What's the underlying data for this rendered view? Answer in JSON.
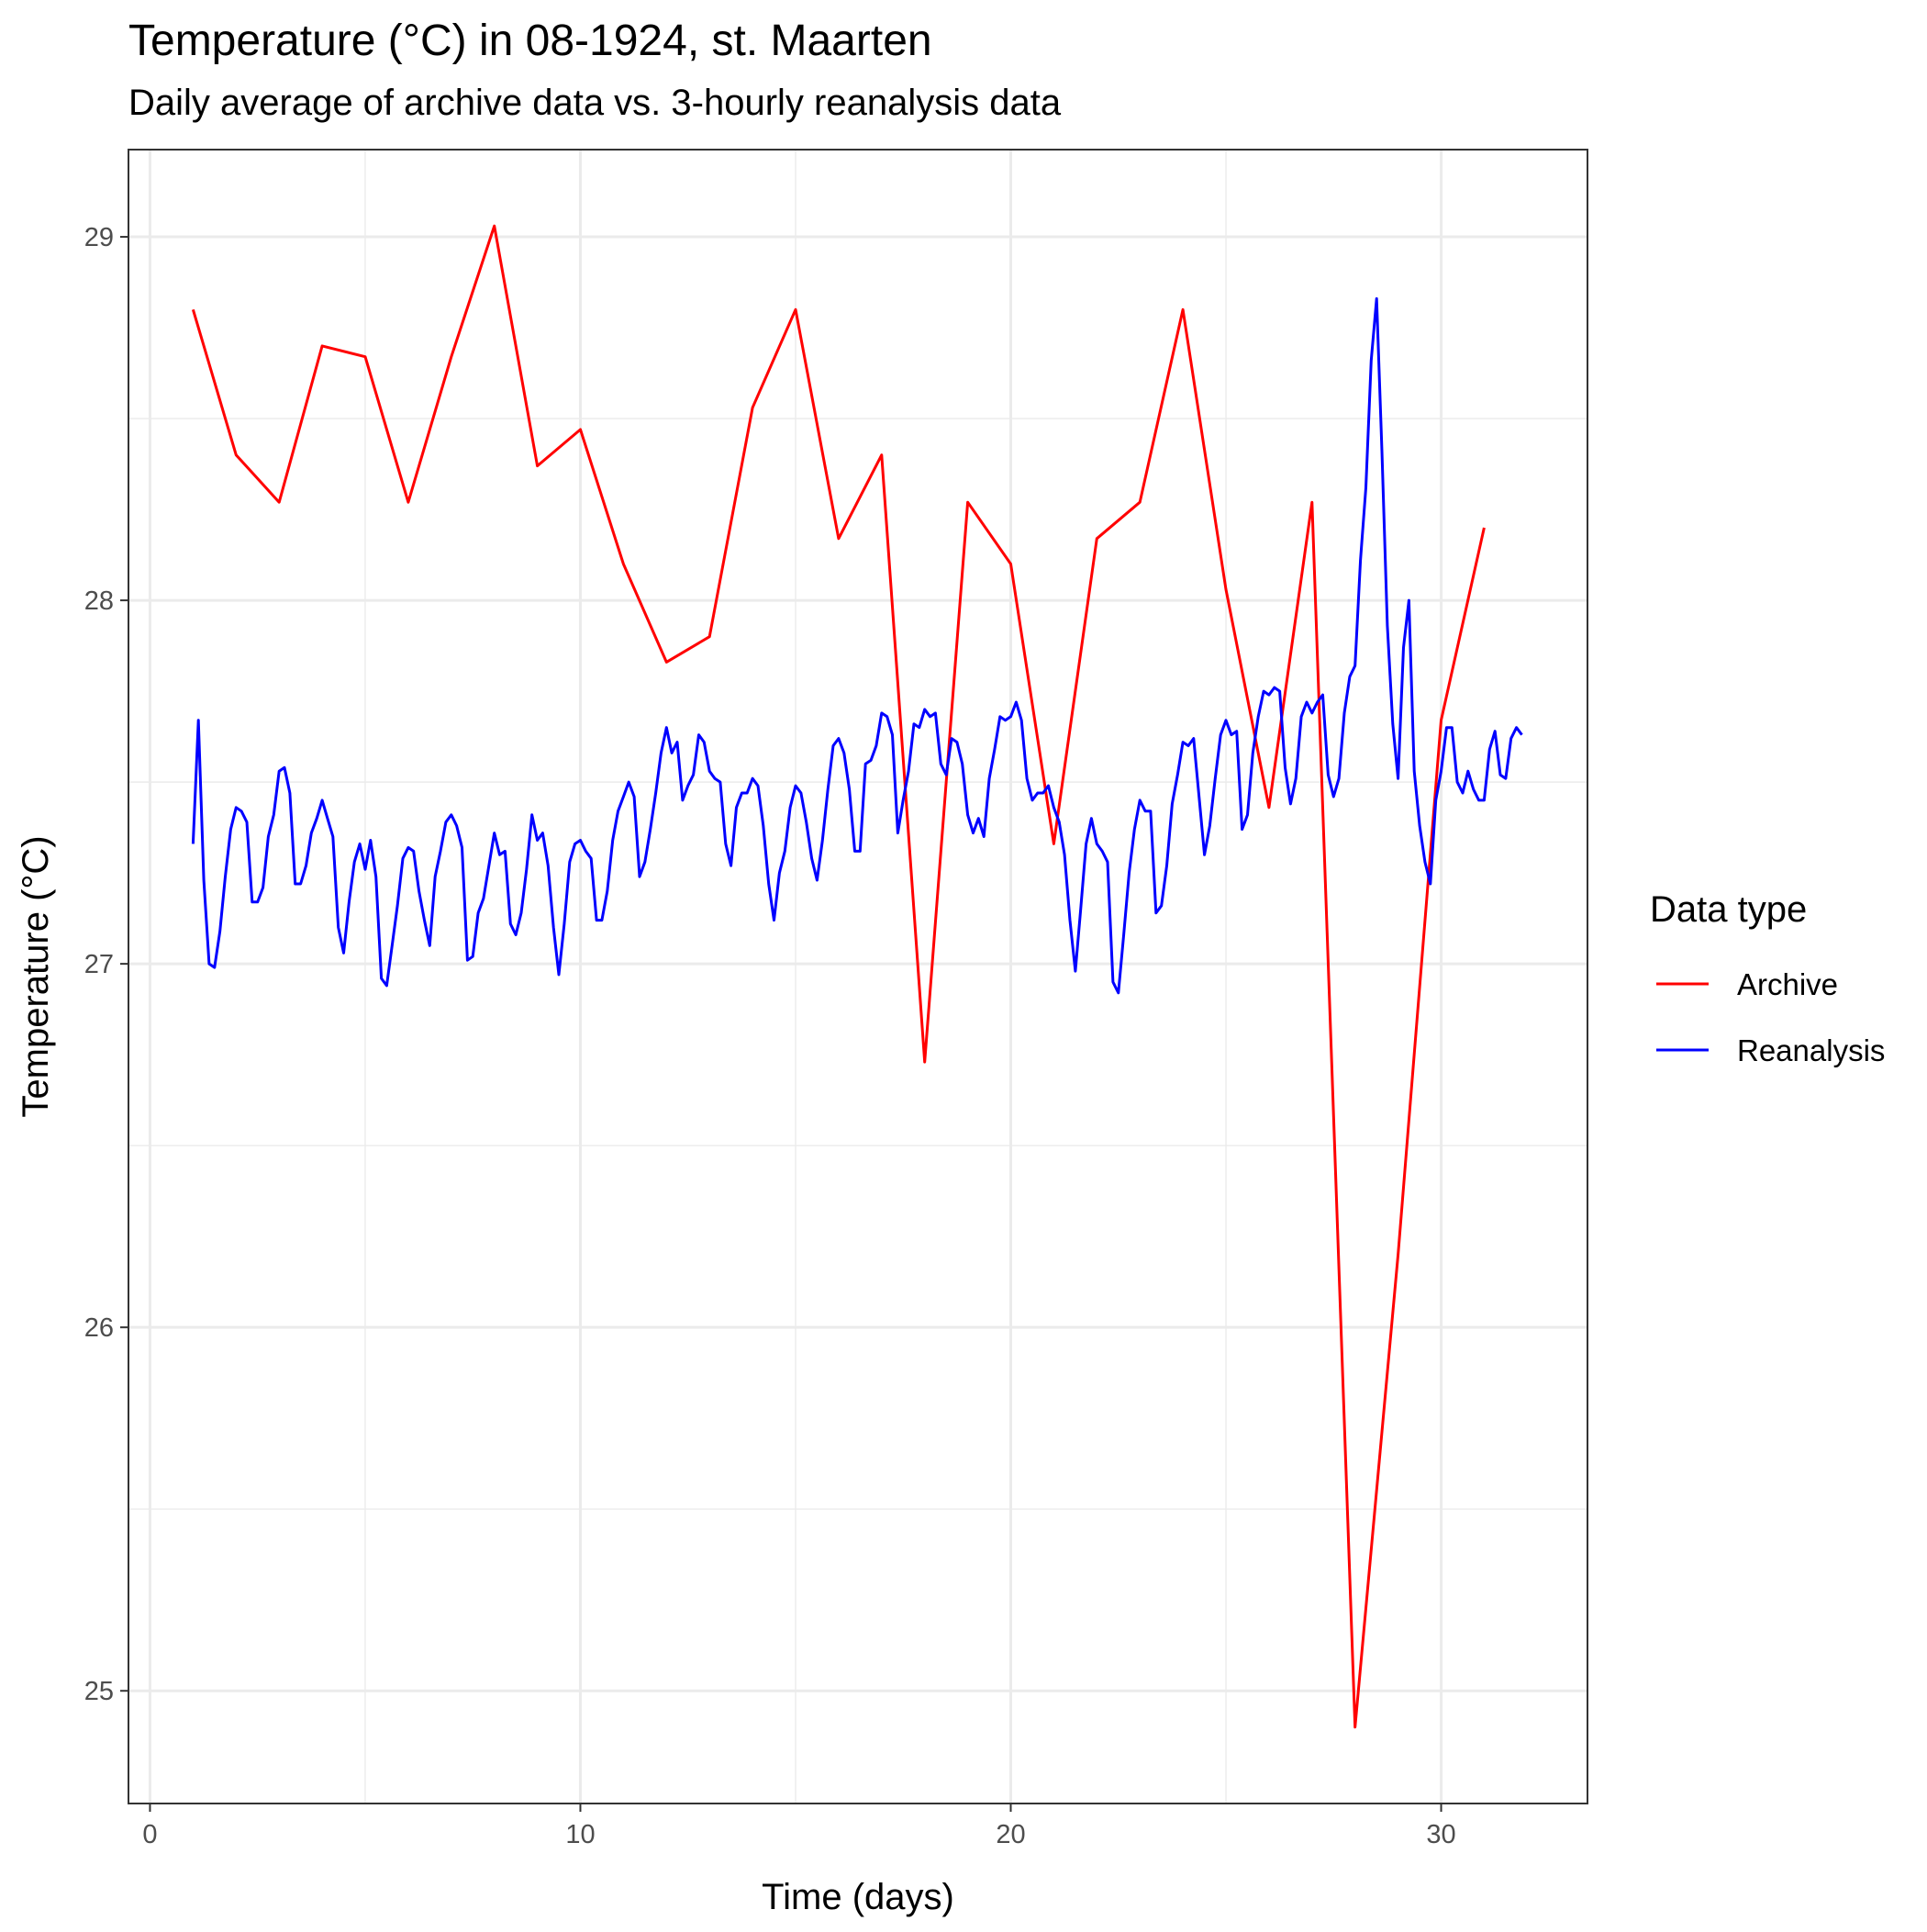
{
  "chart_data": {
    "type": "line",
    "title": "Temperature (°C) in 08-1924, st. Maarten",
    "subtitle": "Daily average of archive data vs. 3-hourly reanalysis data",
    "xlabel": "Time (days)",
    "ylabel": "Temperature (°C)",
    "xlim": [
      -0.5,
      33.4
    ],
    "ylim": [
      24.69,
      29.24
    ],
    "x_ticks": [
      0,
      10,
      20,
      30
    ],
    "y_ticks": [
      25,
      26,
      27,
      28,
      29
    ],
    "grid": true,
    "legend": {
      "title": "Data type",
      "position": "right"
    },
    "series": [
      {
        "name": "Archive",
        "color": "#ff0000",
        "x": [
          1,
          2,
          3,
          4,
          5,
          6,
          7,
          8,
          9,
          10,
          11,
          12,
          13,
          14,
          15,
          16,
          17,
          18,
          19,
          20,
          21,
          22,
          23,
          24,
          25,
          26,
          27,
          28,
          29,
          30,
          31
        ],
        "values": [
          28.8,
          28.4,
          28.27,
          28.7,
          28.67,
          28.27,
          28.67,
          29.03,
          28.37,
          28.47,
          28.1,
          27.83,
          27.9,
          28.53,
          28.8,
          28.17,
          28.4,
          26.73,
          28.27,
          28.1,
          27.33,
          28.17,
          28.27,
          28.8,
          28.03,
          27.43,
          28.27,
          24.9,
          26.2,
          27.67,
          28.2
        ]
      },
      {
        "name": "Reanalysis",
        "color": "#0000ff",
        "x": [
          1.0,
          1.125,
          1.25,
          1.375,
          1.5,
          1.625,
          1.75,
          1.875,
          2.0,
          2.125,
          2.25,
          2.375,
          2.5,
          2.625,
          2.75,
          2.875,
          3.0,
          3.125,
          3.25,
          3.375,
          3.5,
          3.625,
          3.75,
          3.875,
          4.0,
          4.125,
          4.25,
          4.375,
          4.5,
          4.625,
          4.75,
          4.875,
          5.0,
          5.125,
          5.25,
          5.375,
          5.5,
          5.625,
          5.75,
          5.875,
          6.0,
          6.125,
          6.25,
          6.375,
          6.5,
          6.625,
          6.75,
          6.875,
          7.0,
          7.125,
          7.25,
          7.375,
          7.5,
          7.625,
          7.75,
          7.875,
          8.0,
          8.125,
          8.25,
          8.375,
          8.5,
          8.625,
          8.75,
          8.875,
          9.0,
          9.125,
          9.25,
          9.375,
          9.5,
          9.625,
          9.75,
          9.875,
          10.0,
          10.125,
          10.25,
          10.375,
          10.5,
          10.625,
          10.75,
          10.875,
          11.0,
          11.125,
          11.25,
          11.375,
          11.5,
          11.625,
          11.75,
          11.875,
          12.0,
          12.125,
          12.25,
          12.375,
          12.5,
          12.625,
          12.75,
          12.875,
          13.0,
          13.125,
          13.25,
          13.375,
          13.5,
          13.625,
          13.75,
          13.875,
          14.0,
          14.125,
          14.25,
          14.375,
          14.5,
          14.625,
          14.75,
          14.875,
          15.0,
          15.125,
          15.25,
          15.375,
          15.5,
          15.625,
          15.75,
          15.875,
          16.0,
          16.125,
          16.25,
          16.375,
          16.5,
          16.625,
          16.75,
          16.875,
          17.0,
          17.125,
          17.25,
          17.375,
          17.5,
          17.625,
          17.75,
          17.875,
          18.0,
          18.125,
          18.25,
          18.375,
          18.5,
          18.625,
          18.75,
          18.875,
          19.0,
          19.125,
          19.25,
          19.375,
          19.5,
          19.625,
          19.75,
          19.875,
          20.0,
          20.125,
          20.25,
          20.375,
          20.5,
          20.625,
          20.75,
          20.875,
          21.0,
          21.125,
          21.25,
          21.375,
          21.5,
          21.625,
          21.75,
          21.875,
          22.0,
          22.125,
          22.25,
          22.375,
          22.5,
          22.625,
          22.75,
          22.875,
          23.0,
          23.125,
          23.25,
          23.375,
          23.5,
          23.625,
          23.75,
          23.875,
          24.0,
          24.125,
          24.25,
          24.375,
          24.5,
          24.625,
          24.75,
          24.875,
          25.0,
          25.125,
          25.25,
          25.375,
          25.5,
          25.625,
          25.75,
          25.875,
          26.0,
          26.125,
          26.25,
          26.375,
          26.5,
          26.625,
          26.75,
          26.875,
          27.0,
          27.125,
          27.25,
          27.375,
          27.5,
          27.625,
          27.75,
          27.875,
          28.0,
          28.125,
          28.25,
          28.375,
          28.5,
          28.625,
          28.75,
          28.875,
          29.0,
          29.125,
          29.25,
          29.375,
          29.5,
          29.625,
          29.75,
          29.875,
          30.0,
          30.125,
          30.25,
          30.375,
          30.5,
          30.625,
          30.75,
          30.875,
          31.0,
          31.125,
          31.25,
          31.375,
          31.5,
          31.625,
          31.75,
          31.875
        ],
        "values": [
          27.33,
          27.67,
          27.23,
          27.0,
          26.99,
          27.09,
          27.24,
          27.37,
          27.43,
          27.42,
          27.39,
          27.17,
          27.17,
          27.21,
          27.35,
          27.41,
          27.53,
          27.54,
          27.47,
          27.22,
          27.22,
          27.27,
          27.36,
          27.4,
          27.45,
          27.4,
          27.35,
          27.1,
          27.03,
          27.17,
          27.28,
          27.33,
          27.26,
          27.34,
          27.24,
          26.96,
          26.94,
          27.05,
          27.16,
          27.29,
          27.32,
          27.31,
          27.2,
          27.12,
          27.05,
          27.24,
          27.31,
          27.39,
          27.41,
          27.38,
          27.32,
          27.01,
          27.02,
          27.14,
          27.18,
          27.27,
          27.36,
          27.3,
          27.31,
          27.11,
          27.08,
          27.14,
          27.26,
          27.41,
          27.34,
          27.36,
          27.27,
          27.1,
          26.97,
          27.11,
          27.28,
          27.33,
          27.34,
          27.31,
          27.29,
          27.12,
          27.12,
          27.2,
          27.34,
          27.42,
          27.46,
          27.5,
          27.46,
          27.24,
          27.28,
          27.37,
          27.47,
          27.58,
          27.65,
          27.58,
          27.61,
          27.45,
          27.49,
          27.52,
          27.63,
          27.61,
          27.53,
          27.51,
          27.5,
          27.33,
          27.27,
          27.43,
          27.47,
          27.47,
          27.51,
          27.49,
          27.38,
          27.22,
          27.12,
          27.25,
          27.31,
          27.43,
          27.49,
          27.47,
          27.39,
          27.29,
          27.23,
          27.34,
          27.48,
          27.6,
          27.62,
          27.58,
          27.48,
          27.31,
          27.31,
          27.55,
          27.56,
          27.6,
          27.69,
          27.68,
          27.63,
          27.36,
          27.45,
          27.53,
          27.66,
          27.65,
          27.7,
          27.68,
          27.69,
          27.55,
          27.52,
          27.62,
          27.61,
          27.55,
          27.41,
          27.36,
          27.4,
          27.35,
          27.51,
          27.59,
          27.68,
          27.67,
          27.68,
          27.72,
          27.67,
          27.51,
          27.45,
          27.47,
          27.47,
          27.49,
          27.43,
          27.39,
          27.3,
          27.12,
          26.98,
          27.15,
          27.33,
          27.4,
          27.33,
          27.31,
          27.28,
          26.95,
          26.92,
          27.08,
          27.25,
          27.37,
          27.45,
          27.42,
          27.42,
          27.14,
          27.16,
          27.27,
          27.44,
          27.52,
          27.61,
          27.6,
          27.62,
          27.46,
          27.3,
          27.38,
          27.51,
          27.63,
          27.67,
          27.63,
          27.64,
          27.37,
          27.41,
          27.58,
          27.68,
          27.75,
          27.74,
          27.76,
          27.75,
          27.54,
          27.44,
          27.51,
          27.68,
          27.72,
          27.69,
          27.72,
          27.74,
          27.52,
          27.46,
          27.51,
          27.69,
          27.79,
          27.82,
          28.11,
          28.31,
          28.66,
          28.83,
          28.41,
          27.93,
          27.66,
          27.51,
          27.87,
          28.0,
          27.53,
          27.38,
          27.28,
          27.22,
          27.45,
          27.53,
          27.65,
          27.65,
          27.5,
          27.47,
          27.53,
          27.48,
          27.45,
          27.45,
          27.59,
          27.64,
          27.52,
          27.51,
          27.62,
          27.65,
          27.63
        ]
      }
    ]
  }
}
